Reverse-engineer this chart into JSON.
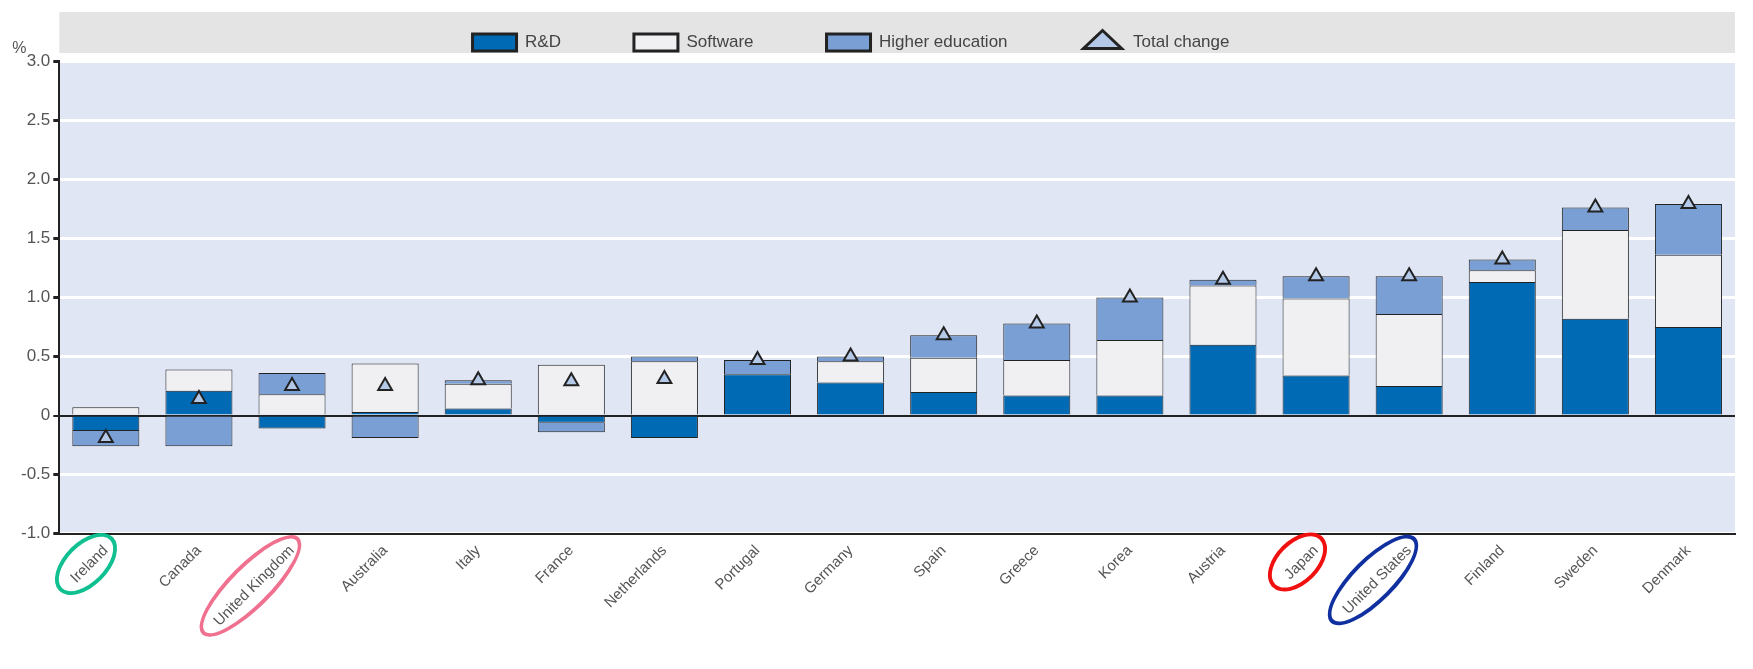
{
  "chart_data": {
    "type": "bar",
    "stacked": true,
    "ylabel": "%",
    "categories": [
      "Ireland",
      "Canada",
      "United Kingdom",
      "Australia",
      "Italy",
      "France",
      "Netherlands",
      "Portugal",
      "Germany",
      "Spain",
      "Greece",
      "Korea",
      "Austria",
      "Japan",
      "United States",
      "Finland",
      "Sweden",
      "Denmark"
    ],
    "series": [
      {
        "name": "R&D",
        "color": "#006ab4",
        "values": [
          -0.13,
          0.21,
          -0.11,
          0.03,
          0.06,
          -0.06,
          -0.19,
          0.35,
          0.28,
          0.2,
          0.17,
          0.17,
          0.6,
          0.34,
          0.25,
          1.13,
          0.82,
          0.75
        ]
      },
      {
        "name": "Software",
        "color": "#f0f0f2",
        "values": [
          0.07,
          0.18,
          0.18,
          0.41,
          0.21,
          0.43,
          0.46,
          0,
          0.18,
          0.29,
          0.3,
          0.47,
          0.5,
          0.65,
          0.61,
          0.1,
          0.75,
          0.61
        ]
      },
      {
        "name": "Higher education",
        "color": "#7a9fd4",
        "values": [
          -0.13,
          -0.26,
          0.18,
          -0.19,
          0.03,
          -0.08,
          0.04,
          0.12,
          0.04,
          0.19,
          0.31,
          0.36,
          0.05,
          0.19,
          0.32,
          0.09,
          0.19,
          0.43
        ]
      },
      {
        "name": "Total change",
        "type": "scatter",
        "marker": "triangle",
        "color": "#b4c8e8",
        "x": [
          "Ireland",
          "Canada",
          "United Kingdom",
          "Australia",
          "Italy",
          "France",
          "Netherlands",
          "Portugal",
          "Germany",
          "Spain",
          "Greece",
          "Korea",
          "Austria",
          "Japan",
          "United States",
          "Finland",
          "Sweden",
          "Denmark"
        ],
        "values": [
          -0.19,
          0.14,
          0.25,
          0.25,
          0.3,
          0.29,
          0.31,
          0.47,
          0.5,
          0.68,
          0.78,
          1.0,
          1.15,
          1.18,
          1.18,
          1.32,
          1.76,
          1.79
        ]
      }
    ],
    "ylim": [
      -1,
      3
    ],
    "yticks": [
      {
        "value": -1,
        "label": "-1.0"
      },
      {
        "value": -0.5,
        "label": "-0.5"
      },
      0,
      {
        "value": 0.5,
        "label": "0.5"
      },
      {
        "value": 1,
        "label": "1.0"
      },
      {
        "value": 1.5,
        "label": "1.5"
      },
      {
        "value": 2,
        "label": "2.0"
      },
      {
        "value": 2.5,
        "label": "2.5"
      },
      {
        "value": 3,
        "label": "3.0"
      }
    ],
    "grid": "y",
    "legend": "top"
  }
}
